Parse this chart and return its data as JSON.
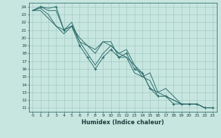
{
  "title": "",
  "xlabel": "Humidex (Indice chaleur)",
  "xlim": [
    -0.5,
    23.5
  ],
  "ylim": [
    10.5,
    24.5
  ],
  "xticks": [
    0,
    1,
    2,
    3,
    4,
    5,
    6,
    7,
    8,
    9,
    10,
    11,
    12,
    13,
    14,
    15,
    16,
    17,
    18,
    19,
    20,
    21,
    22,
    23
  ],
  "yticks": [
    11,
    12,
    13,
    14,
    15,
    16,
    17,
    18,
    19,
    20,
    21,
    22,
    23,
    24
  ],
  "bg_color": "#c8e6e0",
  "grid_color": "#a0c8c0",
  "line_color": "#2a6b6b",
  "series": [
    {
      "x": [
        0,
        1,
        2,
        3,
        4,
        5,
        6,
        7,
        8,
        9,
        10,
        11,
        12,
        13,
        14,
        15,
        16,
        17,
        18,
        19,
        20,
        21,
        22,
        23
      ],
      "y": [
        23.5,
        24.0,
        23.5,
        23.5,
        21.0,
        21.5,
        19.0,
        17.5,
        16.0,
        17.5,
        18.5,
        17.5,
        18.0,
        16.0,
        15.5,
        13.5,
        12.5,
        12.5,
        11.5,
        11.5,
        11.5,
        11.5,
        11.0,
        11.0
      ]
    },
    {
      "x": [
        0,
        1,
        2,
        3,
        4,
        5,
        6,
        7,
        8,
        9,
        10,
        11,
        12,
        13,
        14,
        15,
        16,
        17,
        18,
        19,
        20,
        21,
        22,
        23
      ],
      "y": [
        23.5,
        24.0,
        23.8,
        24.0,
        21.0,
        22.0,
        19.5,
        18.0,
        16.5,
        18.0,
        19.0,
        18.0,
        18.5,
        16.5,
        15.5,
        13.5,
        13.0,
        12.5,
        12.0,
        11.5,
        11.5,
        11.5,
        11.0,
        11.0
      ]
    },
    {
      "x": [
        0,
        1,
        2,
        3,
        4,
        5,
        6,
        7,
        8,
        9,
        10,
        11,
        12,
        13,
        14,
        15,
        16,
        17,
        18,
        19,
        20,
        21,
        22,
        23
      ],
      "y": [
        23.5,
        23.8,
        23.0,
        21.5,
        21.0,
        21.5,
        20.0,
        19.0,
        18.5,
        19.5,
        19.0,
        18.0,
        17.5,
        15.5,
        15.0,
        14.5,
        12.5,
        12.5,
        12.0,
        11.5,
        11.5,
        11.5,
        11.0,
        11.0
      ]
    },
    {
      "x": [
        0,
        1,
        2,
        3,
        4,
        5,
        6,
        7,
        8,
        9,
        10,
        11,
        12,
        13,
        14,
        15,
        16,
        17,
        18,
        19,
        20,
        21,
        22,
        23
      ],
      "y": [
        23.5,
        23.5,
        22.5,
        21.5,
        20.5,
        21.5,
        19.5,
        19.0,
        18.0,
        19.5,
        19.5,
        17.5,
        17.5,
        16.5,
        15.0,
        15.5,
        13.0,
        13.5,
        12.5,
        11.5,
        11.5,
        11.5,
        11.0,
        11.0
      ]
    }
  ],
  "markers_x": [
    1,
    3,
    4,
    5,
    6,
    7,
    8,
    9,
    10,
    11,
    12,
    13,
    14,
    15,
    16,
    17,
    18,
    19,
    20,
    21,
    22,
    23
  ],
  "markers_y": [
    24.0,
    24.0,
    21.0,
    21.5,
    19.0,
    17.5,
    16.0,
    17.5,
    18.5,
    17.5,
    18.0,
    16.0,
    15.5,
    13.5,
    12.5,
    12.5,
    11.5,
    11.5,
    11.5,
    11.5,
    11.0,
    11.0
  ],
  "xlabel_fontsize": 6,
  "tick_fontsize": 4.5
}
